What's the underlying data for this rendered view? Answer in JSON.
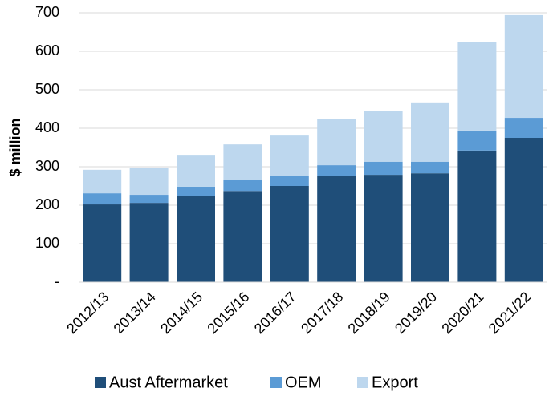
{
  "chart_data": {
    "type": "stacked_bar",
    "y_label": "$ million",
    "categories": [
      "2012/13",
      "2013/14",
      "2014/15",
      "2015/16",
      "2016/17",
      "2017/18",
      "2018/19",
      "2019/20",
      "2020/21",
      "2021/22"
    ],
    "series": [
      {
        "name": "Aust Aftermarket",
        "color": "#1f4e79",
        "values": [
          202,
          206,
          223,
          237,
          250,
          275,
          279,
          283,
          342,
          375
        ]
      },
      {
        "name": "OEM",
        "color": "#5b9bd5",
        "values": [
          29,
          21,
          25,
          28,
          27,
          29,
          34,
          30,
          52,
          52
        ]
      },
      {
        "name": "Export",
        "color": "#bdd7ee",
        "values": [
          61,
          71,
          83,
          93,
          104,
          119,
          131,
          154,
          231,
          267
        ]
      }
    ],
    "ylim": [
      0,
      700
    ],
    "yticks": [
      {
        "value": 0,
        "label": "-"
      },
      100,
      200,
      300,
      400,
      500,
      600,
      700
    ],
    "grid": true
  }
}
